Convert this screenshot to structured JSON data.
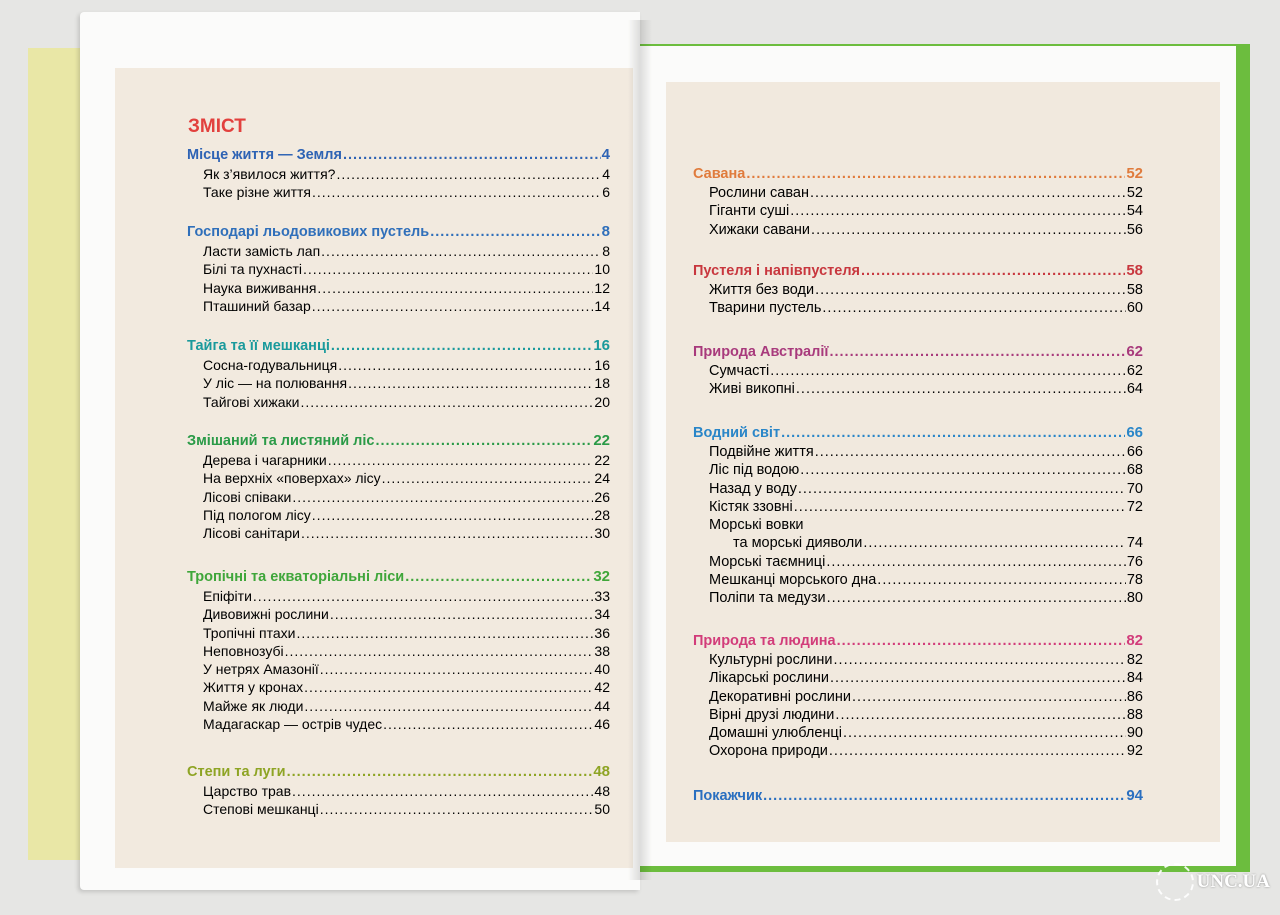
{
  "title": "ЗМІСТ",
  "colors": {
    "title": "#e2403d"
  },
  "left_sections": [
    {
      "title": "Місце життя — Земля",
      "page": "4",
      "color": "#2e63b4",
      "items": [
        {
          "label": "Як з’явилося життя?",
          "page": "4"
        },
        {
          "label": "Таке різне життя",
          "page": "6"
        }
      ]
    },
    {
      "title": "Господарі льодовикових пустель",
      "page": "8",
      "color": "#2f6fba",
      "items": [
        {
          "label": "Ласти замість лап",
          "page": "8"
        },
        {
          "label": "Білі та пухнасті",
          "page": "10"
        },
        {
          "label": "Наука виживання",
          "page": "12"
        },
        {
          "label": "Пташиний базар",
          "page": "14"
        }
      ]
    },
    {
      "title": "Тайга та її мешканці",
      "page": "16",
      "color": "#1a9a9c",
      "items": [
        {
          "label": "Сосна-годувальниця",
          "page": "16"
        },
        {
          "label": "У ліс — на полювання",
          "page": "18"
        },
        {
          "label": "Тайгові хижаки",
          "page": "20"
        }
      ]
    },
    {
      "title": "Змішаний та листяний ліс",
      "page": "22",
      "color": "#2a9a47",
      "items": [
        {
          "label": "Дерева і чагарники",
          "page": "22"
        },
        {
          "label": "На верхніх «поверхах» лісу",
          "page": "24"
        },
        {
          "label": "Лісові співаки",
          "page": "26"
        },
        {
          "label": "Під пологом лісу",
          "page": "28"
        },
        {
          "label": "Лісові санітари",
          "page": "30"
        }
      ]
    },
    {
      "title": "Тропічні та екваторіальні ліси",
      "page": "32",
      "color": "#3fa63a",
      "items": [
        {
          "label": "Епіфіти",
          "page": "33"
        },
        {
          "label": "Дивовижні рослини",
          "page": "34"
        },
        {
          "label": "Тропічні птахи",
          "page": "36"
        },
        {
          "label": "Неповнозубі",
          "page": "38"
        },
        {
          "label": "У нетрях Амазонії",
          "page": "40"
        },
        {
          "label": "Життя у кронах",
          "page": "42"
        },
        {
          "label": "Майже як люди",
          "page": "44"
        },
        {
          "label": "Мадагаскар — острів чудес",
          "page": "46"
        }
      ]
    },
    {
      "title": "Степи та луги",
      "page": "48",
      "color": "#8ea424",
      "items": [
        {
          "label": "Царство трав",
          "page": "48"
        },
        {
          "label": "Степові мешканці",
          "page": "50"
        }
      ]
    }
  ],
  "right_sections": [
    {
      "title": "Савана",
      "page": "52",
      "color": "#e07b3c",
      "items": [
        {
          "label": "Рослини саван",
          "page": "52"
        },
        {
          "label": "Гіганти суші",
          "page": "54"
        },
        {
          "label": "Хижаки савани",
          "page": "56"
        }
      ]
    },
    {
      "title": "Пустеля і напівпустеля",
      "page": "58",
      "color": "#c8373e",
      "items": [
        {
          "label": "Життя без води",
          "page": "58"
        },
        {
          "label": "Тварини пустель",
          "page": "60"
        }
      ]
    },
    {
      "title": "Природа Австралії",
      "page": "62",
      "color": "#a83a7c",
      "items": [
        {
          "label": "Сумчасті",
          "page": "62"
        },
        {
          "label": "Живі викопні",
          "page": "64"
        }
      ]
    },
    {
      "title": "Водний світ",
      "page": "66",
      "color": "#2a86c8",
      "items": [
        {
          "label": "Подвійне життя",
          "page": "66"
        },
        {
          "label": "Ліс під водою",
          "page": "68"
        },
        {
          "label": "Назад у воду",
          "page": "70"
        },
        {
          "label": "Кістяк ззовні",
          "page": "72"
        },
        {
          "label": "Морські вовки",
          "page": ""
        },
        {
          "label": "та морські дияволи",
          "page": "74",
          "indent": true
        },
        {
          "label": "Морські таємниці",
          "page": "76"
        },
        {
          "label": "Мешканці морського дна",
          "page": "78"
        },
        {
          "label": "Поліпи та медузи",
          "page": "80"
        }
      ]
    },
    {
      "title": "Природа та людина",
      "page": "82",
      "color": "#d23c7a",
      "items": [
        {
          "label": "Культурні рослини",
          "page": "82"
        },
        {
          "label": "Лікарські рослини",
          "page": "84"
        },
        {
          "label": "Декоративні рослини",
          "page": "86"
        },
        {
          "label": "Вірні друзі людини",
          "page": "88"
        },
        {
          "label": "Домашні улюбленці",
          "page": "90"
        },
        {
          "label": "Охорона природи",
          "page": "92"
        }
      ]
    },
    {
      "title": "Покажчик",
      "page": "94",
      "color": "#2a6fc0",
      "items": []
    }
  ],
  "watermark": "UNC.UA"
}
